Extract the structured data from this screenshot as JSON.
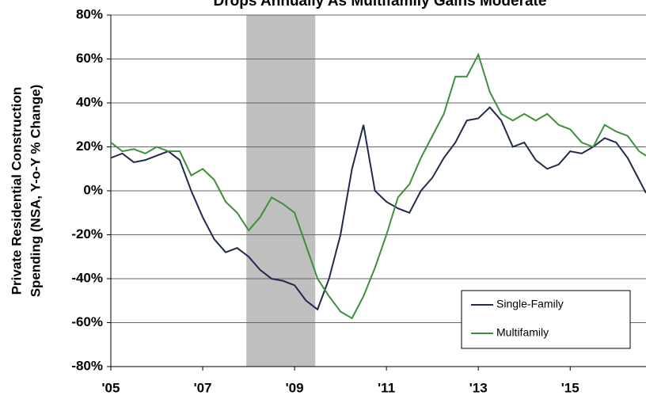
{
  "chart_data": {
    "type": "line",
    "title": "Drops Annually As Multifamily Gains Moderate",
    "ylabel": [
      "Private Residential Construction",
      "Spending (NSA, Y-o-Y % Change)"
    ],
    "x": [
      2005.0,
      2005.25,
      2005.5,
      2005.75,
      2006.0,
      2006.25,
      2006.5,
      2006.75,
      2007.0,
      2007.25,
      2007.5,
      2007.75,
      2008.0,
      2008.25,
      2008.5,
      2008.75,
      2009.0,
      2009.25,
      2009.5,
      2009.75,
      2010.0,
      2010.25,
      2010.5,
      2010.75,
      2011.0,
      2011.25,
      2011.5,
      2011.75,
      2012.0,
      2012.25,
      2012.5,
      2012.75,
      2013.0,
      2013.25,
      2013.5,
      2013.75,
      2014.0,
      2014.25,
      2014.5,
      2014.75,
      2015.0,
      2015.25,
      2015.5,
      2015.75,
      2016.0,
      2016.25,
      2016.5,
      2016.65
    ],
    "series": [
      {
        "name": "Single-Family",
        "color": "#1f2a4d",
        "values": [
          15,
          17,
          13,
          14,
          16,
          18,
          14,
          0,
          -12,
          -22,
          -28,
          -26,
          -30,
          -36,
          -40,
          -41,
          -43,
          -50,
          -54,
          -40,
          -20,
          10,
          30,
          0,
          -5,
          -8,
          -10,
          0,
          6,
          15,
          22,
          32,
          33,
          38,
          32,
          20,
          22,
          14,
          10,
          12,
          18,
          17,
          20,
          24,
          22,
          15,
          5,
          -1
        ]
      },
      {
        "name": "Multifamily",
        "color": "#3d8f3d",
        "values": [
          22,
          18,
          19,
          17,
          20,
          18,
          18,
          7,
          10,
          5,
          -5,
          -10,
          -18,
          -12,
          -3,
          -6,
          -10,
          -25,
          -40,
          -48,
          -55,
          -58,
          -48,
          -35,
          -20,
          -3,
          3,
          15,
          25,
          35,
          52,
          52,
          62,
          45,
          35,
          32,
          35,
          32,
          35,
          30,
          28,
          22,
          20,
          30,
          27,
          25,
          18,
          16
        ]
      }
    ],
    "recession": [
      2007.95,
      2009.45
    ],
    "xlim": [
      2005,
      2016.65
    ],
    "xticks": [
      {
        "value": 2005,
        "label": "'05"
      },
      {
        "value": 2007,
        "label": "'07"
      },
      {
        "value": 2009,
        "label": "'09"
      },
      {
        "value": 2011,
        "label": "'11"
      },
      {
        "value": 2013,
        "label": "'13"
      },
      {
        "value": 2015,
        "label": "'15"
      }
    ],
    "ylim": [
      -80,
      80
    ],
    "yticks": [
      {
        "value": -80,
        "label": "-80%"
      },
      {
        "value": -60,
        "label": "-60%"
      },
      {
        "value": -40,
        "label": "-40%"
      },
      {
        "value": -20,
        "label": "-20%"
      },
      {
        "value": 0,
        "label": "0%"
      },
      {
        "value": 20,
        "label": "20%"
      },
      {
        "value": 40,
        "label": "40%"
      },
      {
        "value": 60,
        "label": "60%"
      },
      {
        "value": 80,
        "label": "80%"
      }
    ],
    "grid": true,
    "legend": "lower right"
  }
}
